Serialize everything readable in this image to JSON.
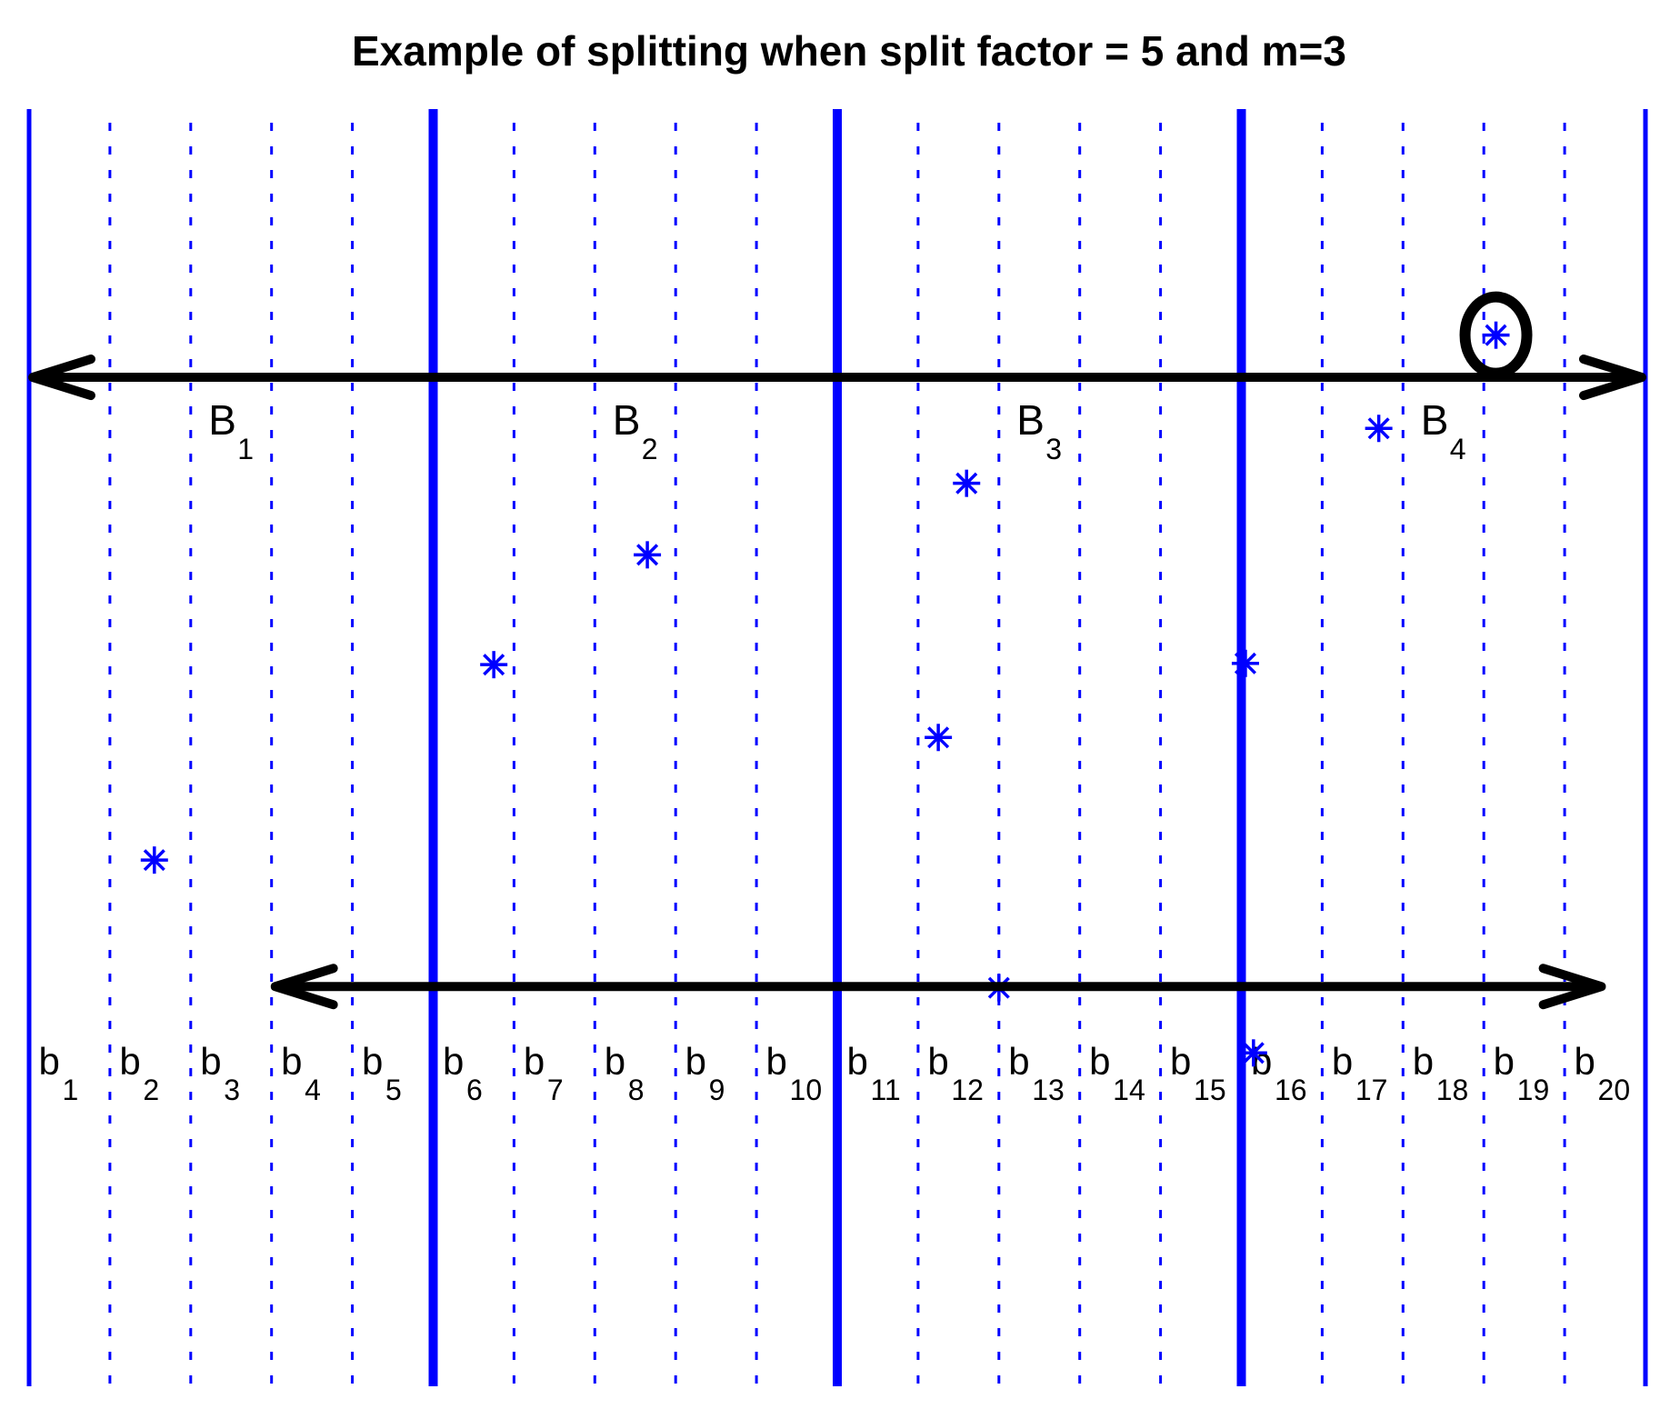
{
  "title": "Example of splitting when split factor = 5 and m=3",
  "colors": {
    "lines": "#0000ff",
    "markers": "#0000ff",
    "arrows": "#000000",
    "text": "#000000"
  },
  "split_factor": 5,
  "m": 3,
  "big_buckets": [
    {
      "base": "B",
      "sub": "1"
    },
    {
      "base": "B",
      "sub": "2"
    },
    {
      "base": "B",
      "sub": "3"
    },
    {
      "base": "B",
      "sub": "4"
    }
  ],
  "small_buckets": [
    {
      "base": "b",
      "sub": "1"
    },
    {
      "base": "b",
      "sub": "2"
    },
    {
      "base": "b",
      "sub": "3"
    },
    {
      "base": "b",
      "sub": "4"
    },
    {
      "base": "b",
      "sub": "5"
    },
    {
      "base": "b",
      "sub": "6"
    },
    {
      "base": "b",
      "sub": "7"
    },
    {
      "base": "b",
      "sub": "8"
    },
    {
      "base": "b",
      "sub": "9"
    },
    {
      "base": "b",
      "sub": "10"
    },
    {
      "base": "b",
      "sub": "11"
    },
    {
      "base": "b",
      "sub": "12"
    },
    {
      "base": "b",
      "sub": "13"
    },
    {
      "base": "b",
      "sub": "14"
    },
    {
      "base": "b",
      "sub": "15"
    },
    {
      "base": "b",
      "sub": "16"
    },
    {
      "base": "b",
      "sub": "17"
    },
    {
      "base": "b",
      "sub": "18"
    },
    {
      "base": "b",
      "sub": "19"
    },
    {
      "base": "b",
      "sub": "20"
    }
  ],
  "points": [
    {
      "x": 1.55,
      "y": 0.412
    },
    {
      "x": 5.75,
      "y": 0.565
    },
    {
      "x": 7.65,
      "y": 0.651
    },
    {
      "x": 11.25,
      "y": 0.508
    },
    {
      "x": 11.6,
      "y": 0.707
    },
    {
      "x": 12.0,
      "y": 0.312
    },
    {
      "x": 15.05,
      "y": 0.566
    },
    {
      "x": 15.15,
      "y": 0.261
    },
    {
      "x": 16.7,
      "y": 0.75
    },
    {
      "x": 18.15,
      "y": 0.823
    }
  ],
  "highlighted_point_index": 9,
  "arrows": [
    {
      "from": 0,
      "to": 20,
      "y": 0.79
    },
    {
      "from": 3,
      "to": 19.5,
      "y": 0.313
    }
  ]
}
